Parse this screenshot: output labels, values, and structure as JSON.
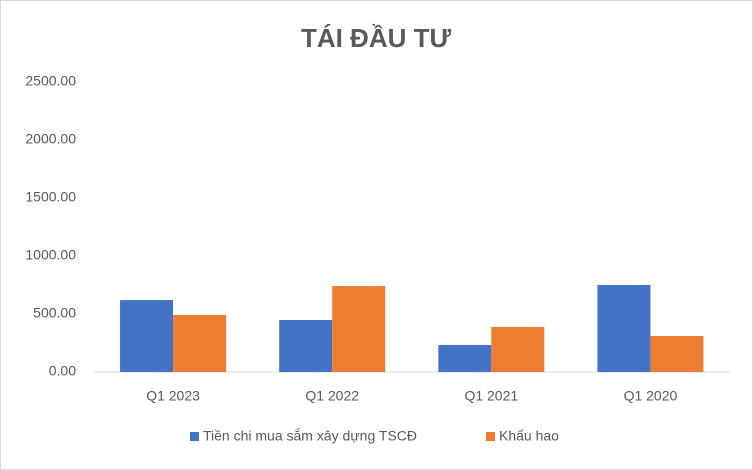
{
  "chart_data": {
    "type": "bar",
    "title": "TÁI ĐẦU TƯ",
    "categories": [
      "Q1 2023",
      "Q1 2022",
      "Q1 2021",
      "Q1 2020"
    ],
    "series": [
      {
        "name": "Tiền chi mua sắm xây dựng TSCĐ",
        "color": "#4472c4",
        "values": [
          620,
          448,
          233,
          750
        ]
      },
      {
        "name": "Khấu hao",
        "color": "#ed7d31",
        "values": [
          491,
          741,
          388,
          310
        ]
      }
    ],
    "ylim": [
      0,
      2500
    ],
    "yticks": [
      {
        "value": 0,
        "label": "0.00"
      },
      {
        "value": 500,
        "label": "500.00"
      },
      {
        "value": 1000,
        "label": "1000.00"
      },
      {
        "value": 1500,
        "label": "1500.00"
      },
      {
        "value": 2000,
        "label": "2000.00"
      },
      {
        "value": 2500,
        "label": "2500.00"
      }
    ],
    "grid": false,
    "legend": "bottom"
  }
}
